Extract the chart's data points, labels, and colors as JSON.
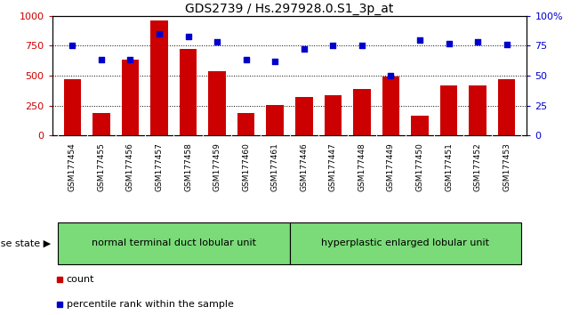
{
  "title": "GDS2739 / Hs.297928.0.S1_3p_at",
  "categories": [
    "GSM177454",
    "GSM177455",
    "GSM177456",
    "GSM177457",
    "GSM177458",
    "GSM177459",
    "GSM177460",
    "GSM177461",
    "GSM177446",
    "GSM177447",
    "GSM177448",
    "GSM177449",
    "GSM177450",
    "GSM177451",
    "GSM177452",
    "GSM177453"
  ],
  "counts": [
    470,
    185,
    630,
    960,
    720,
    540,
    185,
    255,
    325,
    335,
    385,
    490,
    165,
    415,
    420,
    470
  ],
  "percentiles": [
    75,
    63,
    63,
    85,
    83,
    78,
    63,
    62,
    72,
    75,
    75,
    50,
    80,
    77,
    78,
    76
  ],
  "bar_color": "#cc0000",
  "dot_color": "#0000cc",
  "left_axis_color": "#cc0000",
  "right_axis_color": "#0000cc",
  "ylim_left": [
    0,
    1000
  ],
  "ylim_right": [
    0,
    100
  ],
  "yticks_left": [
    0,
    250,
    500,
    750,
    1000
  ],
  "yticks_right": [
    0,
    25,
    50,
    75,
    100
  ],
  "yticklabels_right": [
    "0",
    "25",
    "50",
    "75",
    "100%"
  ],
  "grid_values": [
    250,
    500,
    750
  ],
  "group1_label": "normal terminal duct lobular unit",
  "group2_label": "hyperplastic enlarged lobular unit",
  "group1_count": 8,
  "group2_count": 8,
  "disease_state_label": "disease state",
  "legend_count_label": "count",
  "legend_percentile_label": "percentile rank within the sample",
  "bg_xtick": "#c8c8c8",
  "bg_group": "#7adb78",
  "title_fontsize": 10,
  "axis_label_fontsize": 8,
  "xtick_fontsize": 6.5,
  "group_label_fontsize": 8,
  "legend_fontsize": 8,
  "disease_state_fontsize": 8
}
